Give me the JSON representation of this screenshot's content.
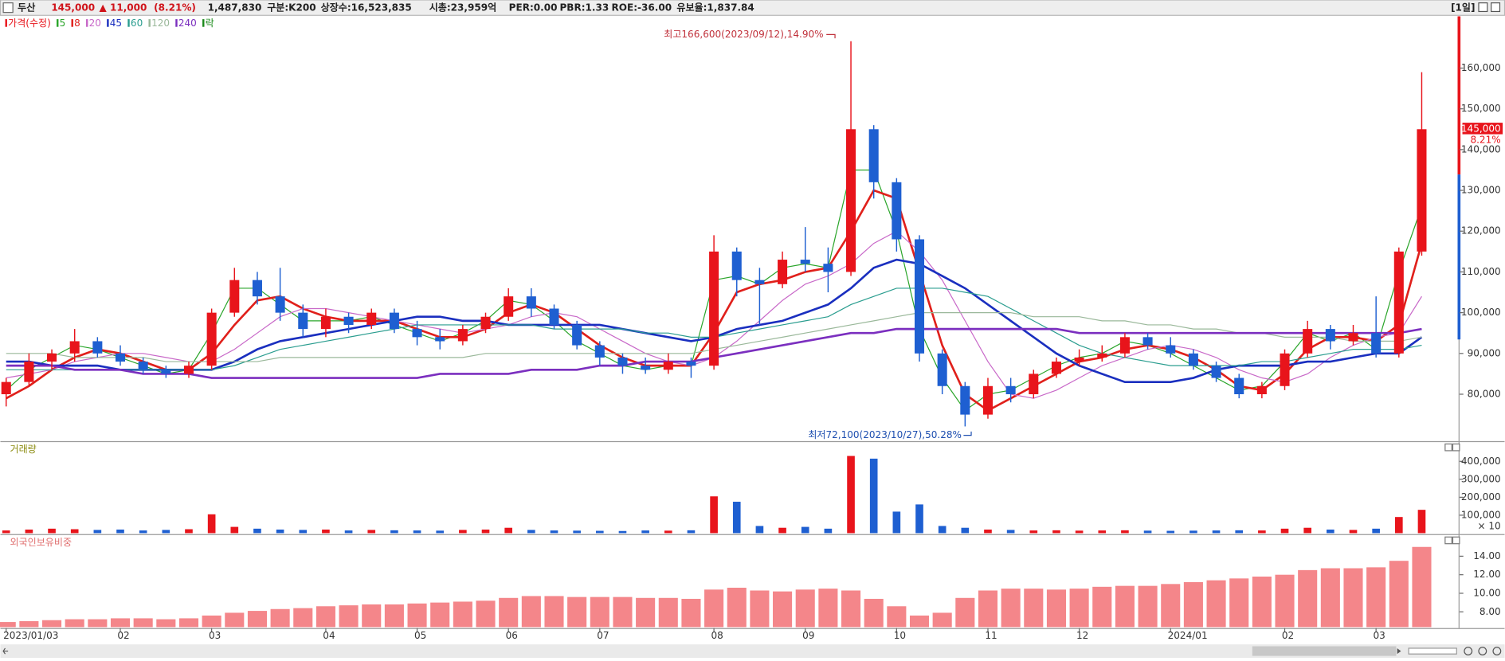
{
  "header": {
    "name": "두산",
    "price": "145,000",
    "change": "▲ 11,000",
    "change_pct": "(8.21%)",
    "volume": "1,487,830",
    "market": "구분:K200",
    "shares": "상장수:16,523,835",
    "market_cap": "시총:23,959억",
    "per": "PER:0.00",
    "pbr": "PBR:1.33",
    "roe": "ROE:-36.00",
    "reserve_ratio": "유보율:1,837.84",
    "period": "[1일]"
  },
  "chart_data": [
    {
      "type": "candlestick",
      "categories": [
        "2023/01/03",
        null,
        null,
        null,
        null,
        "02",
        null,
        null,
        null,
        "03",
        null,
        null,
        null,
        null,
        "04",
        null,
        null,
        null,
        "05",
        null,
        null,
        null,
        "06",
        null,
        null,
        null,
        "07",
        null,
        null,
        null,
        null,
        "08",
        null,
        null,
        null,
        "09",
        null,
        null,
        null,
        "10",
        null,
        null,
        null,
        "11",
        null,
        null,
        null,
        "12",
        null,
        null,
        null,
        "2024/01",
        null,
        null,
        null,
        null,
        "02",
        null,
        null,
        null,
        "03",
        null,
        null
      ],
      "ohlc": {
        "name": "가격(수정)",
        "up_color": "#e8141b",
        "down_color": "#1e5fd1",
        "open": [
          80000,
          83000,
          88000,
          90000,
          93000,
          90000,
          88000,
          86000,
          85000,
          87000,
          100000,
          108000,
          104000,
          100000,
          96000,
          99000,
          97000,
          100000,
          96000,
          94000,
          93000,
          96000,
          99000,
          104000,
          101000,
          97000,
          92000,
          89000,
          87000,
          86000,
          88000,
          87000,
          115000,
          108000,
          107000,
          113000,
          112000,
          110000,
          145000,
          132000,
          118000,
          90000,
          82000,
          75000,
          82000,
          80000,
          85000,
          88000,
          89000,
          90000,
          94000,
          92000,
          90000,
          87000,
          84000,
          80000,
          82000,
          90000,
          96000,
          93000,
          95000,
          90000,
          115000
        ],
        "high": [
          84000,
          90000,
          91000,
          96000,
          94000,
          92000,
          89000,
          87000,
          88000,
          101000,
          111000,
          110000,
          111000,
          102000,
          101000,
          100000,
          101000,
          101000,
          98000,
          96000,
          97000,
          100000,
          106000,
          106000,
          102000,
          98000,
          93000,
          90000,
          89000,
          90000,
          89000,
          119000,
          116000,
          111000,
          115000,
          121000,
          116000,
          166600,
          146000,
          133000,
          119000,
          91000,
          83000,
          84000,
          84000,
          86000,
          89000,
          91000,
          92000,
          95000,
          95000,
          94000,
          91000,
          88000,
          85000,
          83000,
          91000,
          98000,
          97000,
          97000,
          104000,
          116000,
          159000
        ],
        "low": [
          77000,
          82000,
          86000,
          88000,
          89000,
          87000,
          85000,
          84000,
          84000,
          86000,
          99000,
          102000,
          98000,
          94000,
          94000,
          95000,
          96000,
          95000,
          92000,
          91000,
          92000,
          95000,
          98000,
          99000,
          96000,
          91000,
          87000,
          85000,
          85000,
          85000,
          84000,
          86000,
          104000,
          97000,
          106000,
          110000,
          105000,
          109000,
          128000,
          115000,
          88000,
          80000,
          72100,
          74000,
          78000,
          79000,
          84000,
          87000,
          88000,
          89000,
          91000,
          89000,
          86000,
          83000,
          79000,
          79000,
          81000,
          89000,
          91000,
          92000,
          89000,
          89000,
          114000
        ],
        "close": [
          83000,
          88000,
          90000,
          93000,
          90000,
          88000,
          86000,
          85000,
          87000,
          100000,
          108000,
          104000,
          100000,
          96000,
          99000,
          97000,
          100000,
          96000,
          94000,
          93000,
          96000,
          99000,
          104000,
          101000,
          97000,
          92000,
          89000,
          87000,
          86000,
          88000,
          87000,
          115000,
          108000,
          107000,
          113000,
          112000,
          110000,
          145000,
          132000,
          118000,
          90000,
          82000,
          75000,
          82000,
          80000,
          85000,
          88000,
          89000,
          90000,
          94000,
          92000,
          90000,
          87000,
          84000,
          80000,
          82000,
          90000,
          96000,
          93000,
          95000,
          90000,
          115000,
          145000
        ]
      },
      "series": [
        {
          "name": "5",
          "color": "#2aa52a",
          "width": 1,
          "values": [
            81000,
            86000,
            89000,
            92000,
            91000,
            89000,
            87000,
            85000,
            86000,
            95000,
            106000,
            106000,
            102000,
            98000,
            98000,
            98000,
            99000,
            97000,
            95000,
            93000,
            95000,
            98000,
            103000,
            102000,
            98000,
            93000,
            90000,
            87000,
            86000,
            87000,
            87000,
            108000,
            109000,
            107000,
            111000,
            112000,
            111000,
            135000,
            135000,
            120000,
            96000,
            84000,
            76000,
            80000,
            81000,
            84000,
            87000,
            89000,
            90000,
            93000,
            92000,
            90000,
            87000,
            84000,
            81000,
            82000,
            88000,
            95000,
            93000,
            95000,
            91000,
            110000,
            126000
          ]
        },
        {
          "name": "8",
          "color": "#e0201b",
          "width": 2.2,
          "values": [
            79000,
            82000,
            86000,
            89000,
            91000,
            90000,
            88000,
            86000,
            86000,
            90000,
            97000,
            103000,
            104000,
            101000,
            99000,
            98000,
            98000,
            98000,
            96000,
            94000,
            94000,
            96000,
            100000,
            102000,
            100000,
            96000,
            92000,
            89000,
            87000,
            87000,
            87000,
            95000,
            105000,
            107000,
            108000,
            110000,
            111000,
            120000,
            130000,
            128000,
            110000,
            92000,
            80000,
            76000,
            79000,
            82000,
            85000,
            88000,
            89000,
            91000,
            92000,
            91000,
            89000,
            86000,
            82000,
            81000,
            85000,
            91000,
            94000,
            94000,
            93000,
            97000,
            117000
          ]
        },
        {
          "name": "20",
          "color": "#c868c8",
          "width": 1,
          "values": [
            84000,
            85000,
            86000,
            88000,
            89000,
            90000,
            90000,
            89000,
            88000,
            88000,
            91000,
            95000,
            99000,
            101000,
            101000,
            100000,
            99000,
            98000,
            97000,
            96000,
            95000,
            96000,
            97000,
            99000,
            100000,
            99000,
            96000,
            93000,
            90000,
            88000,
            87000,
            89000,
            93000,
            98000,
            103000,
            107000,
            109000,
            112000,
            117000,
            120000,
            115000,
            108000,
            98000,
            88000,
            80000,
            79000,
            81000,
            84000,
            87000,
            89000,
            91000,
            92000,
            91000,
            89000,
            86000,
            84000,
            83000,
            85000,
            89000,
            92000,
            94000,
            95000,
            104000
          ]
        },
        {
          "name": "45",
          "color": "#1a2fbf",
          "width": 2.2,
          "values": [
            88000,
            88000,
            87000,
            87000,
            87000,
            86000,
            86000,
            86000,
            86000,
            86000,
            88000,
            91000,
            93000,
            94000,
            95000,
            96000,
            97000,
            98000,
            99000,
            99000,
            98000,
            98000,
            97000,
            97000,
            97000,
            97000,
            97000,
            96000,
            95000,
            94000,
            93000,
            94000,
            96000,
            97000,
            98000,
            100000,
            102000,
            106000,
            111000,
            113000,
            112000,
            109000,
            106000,
            102000,
            98000,
            94000,
            90000,
            87000,
            85000,
            83000,
            83000,
            83000,
            84000,
            86000,
            87000,
            87000,
            87000,
            88000,
            88000,
            89000,
            90000,
            90000,
            94000
          ]
        },
        {
          "name": "60",
          "color": "#2a9d8f",
          "width": 1,
          "values": [
            86000,
            86000,
            86000,
            86000,
            86000,
            86000,
            86000,
            86000,
            86000,
            86000,
            87000,
            89000,
            91000,
            92000,
            93000,
            94000,
            95000,
            96000,
            97000,
            97000,
            97000,
            97000,
            97000,
            97000,
            96000,
            96000,
            96000,
            96000,
            95000,
            95000,
            94000,
            94000,
            95000,
            96000,
            97000,
            98000,
            99000,
            102000,
            104000,
            106000,
            106000,
            106000,
            105000,
            104000,
            101000,
            98000,
            95000,
            92000,
            90000,
            89000,
            88000,
            87000,
            87000,
            87000,
            87000,
            88000,
            88000,
            89000,
            90000,
            91000,
            91000,
            91000,
            92000
          ]
        },
        {
          "name": "120",
          "color": "#9ab89a",
          "width": 1,
          "values": [
            90000,
            90000,
            90000,
            89000,
            89000,
            89000,
            89000,
            88000,
            88000,
            88000,
            88000,
            88000,
            89000,
            89000,
            89000,
            89000,
            89000,
            89000,
            89000,
            89000,
            89000,
            90000,
            90000,
            90000,
            90000,
            90000,
            90000,
            90000,
            90000,
            90000,
            90000,
            91000,
            92000,
            93000,
            94000,
            95000,
            96000,
            97000,
            98000,
            99000,
            100000,
            100000,
            100000,
            100000,
            100000,
            99000,
            99000,
            99000,
            98000,
            98000,
            97000,
            97000,
            96000,
            96000,
            95000,
            95000,
            94000,
            94000,
            94000,
            93000,
            93000,
            93000,
            94000
          ]
        },
        {
          "name": "240",
          "color": "#7b2fbf",
          "width": 2.2,
          "values": [
            87000,
            87000,
            87000,
            86000,
            86000,
            86000,
            85000,
            85000,
            85000,
            84000,
            84000,
            84000,
            84000,
            84000,
            84000,
            84000,
            84000,
            84000,
            84000,
            85000,
            85000,
            85000,
            85000,
            86000,
            86000,
            86000,
            87000,
            87000,
            88000,
            88000,
            88000,
            89000,
            90000,
            91000,
            92000,
            93000,
            94000,
            95000,
            95000,
            96000,
            96000,
            96000,
            96000,
            96000,
            96000,
            96000,
            96000,
            95000,
            95000,
            95000,
            95000,
            95000,
            95000,
            95000,
            95000,
            95000,
            95000,
            95000,
            95000,
            95000,
            95000,
            95000,
            96000
          ]
        }
      ],
      "ex_rights": {
        "label": "락",
        "color": "#1a8a1a"
      },
      "annotations": [
        "최고166,600(2023/09/12),14.90%",
        "최저72,100(2023/10/27),50.28%"
      ],
      "last_label": "145,000",
      "last_change": "8.21%",
      "ylim": [
        68500,
        172700
      ],
      "yticks": [
        {
          "value": 80000,
          "label": "80,000"
        },
        {
          "value": 90000,
          "label": "90,000"
        },
        {
          "value": 100000,
          "label": "100,000"
        },
        {
          "value": 110000,
          "label": "110,000"
        },
        {
          "value": 120000,
          "label": "120,000"
        },
        {
          "value": 130000,
          "label": "130,000"
        },
        {
          "value": 140000,
          "label": "140,000"
        },
        {
          "value": 150000,
          "label": "150,000"
        },
        {
          "value": 160000,
          "label": "160,000"
        }
      ],
      "grid": false
    },
    {
      "type": "bar",
      "title": "거래량",
      "unit_label": "× 10",
      "values": [
        15000,
        20000,
        25000,
        22000,
        18000,
        20000,
        15000,
        18000,
        22000,
        105000,
        35000,
        25000,
        20000,
        18000,
        20000,
        15000,
        18000,
        16000,
        15000,
        14000,
        18000,
        20000,
        30000,
        18000,
        15000,
        14000,
        13000,
        12000,
        15000,
        14000,
        16000,
        205000,
        175000,
        40000,
        30000,
        35000,
        25000,
        430000,
        415000,
        120000,
        160000,
        40000,
        30000,
        20000,
        18000,
        15000,
        16000,
        14000,
        15000,
        16000,
        14000,
        13000,
        14000,
        15000,
        16000,
        15000,
        25000,
        30000,
        20000,
        18000,
        25000,
        90000,
        130000
      ],
      "ylim": [
        0,
        470000
      ],
      "yticks": [
        {
          "value": 100000,
          "label": "100,000"
        },
        {
          "value": 200000,
          "label": "200,000"
        },
        {
          "value": 300000,
          "label": "300,000"
        },
        {
          "value": 400000,
          "label": "400,000"
        }
      ]
    },
    {
      "type": "bar",
      "title": "외국인보유비중",
      "color": "#f4868a",
      "values": [
        6.9,
        7.0,
        7.1,
        7.2,
        7.2,
        7.3,
        7.3,
        7.2,
        7.3,
        7.6,
        7.9,
        8.1,
        8.3,
        8.4,
        8.6,
        8.7,
        8.8,
        8.8,
        8.9,
        9.0,
        9.1,
        9.2,
        9.5,
        9.7,
        9.7,
        9.6,
        9.6,
        9.6,
        9.5,
        9.5,
        9.4,
        10.4,
        10.6,
        10.3,
        10.2,
        10.4,
        10.5,
        10.3,
        9.4,
        8.6,
        7.6,
        7.9,
        9.5,
        10.3,
        10.5,
        10.5,
        10.4,
        10.5,
        10.7,
        10.8,
        10.8,
        11.0,
        11.2,
        11.4,
        11.6,
        11.8,
        12.0,
        12.5,
        12.7,
        12.7,
        12.8,
        13.5,
        15.0
      ],
      "ylim": [
        6.35,
        15.45
      ],
      "yticks": [
        {
          "value": 8,
          "label": "8.00"
        },
        {
          "value": 10,
          "label": "10.00"
        },
        {
          "value": 12,
          "label": "12.00"
        },
        {
          "value": 14,
          "label": "14.00"
        }
      ]
    }
  ]
}
